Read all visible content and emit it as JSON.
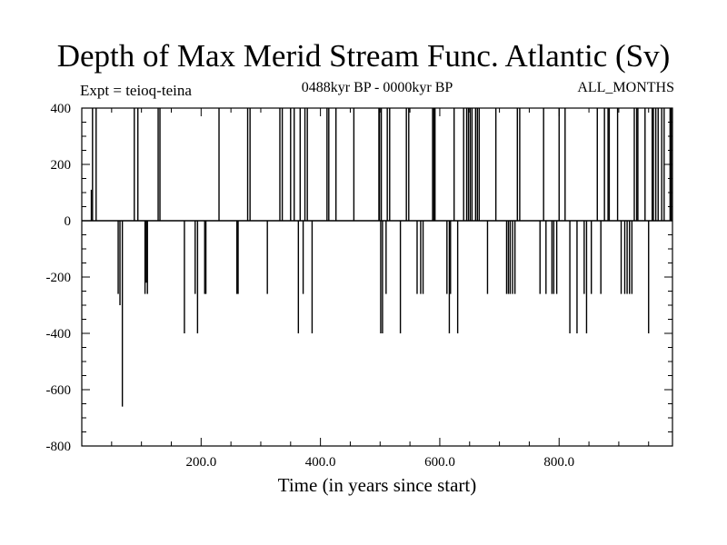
{
  "header": {
    "title": "Depth of Max Merid Stream Func. Atlantic (Sv)",
    "experiment": "Expt = teioq-teina",
    "period": "0488kyr BP - 0000kyr BP",
    "months": "ALL_MONTHS"
  },
  "chart_data": {
    "type": "line",
    "title": "Depth of Max Merid Stream Func. Atlantic (Sv)",
    "xlabel": "Time (in years since start)",
    "ylabel": "",
    "xlim": [
      0,
      990
    ],
    "ylim": [
      -800,
      400
    ],
    "x_ticks": [
      200,
      400,
      600,
      800
    ],
    "x_tick_labels": [
      "200.0",
      "400.0",
      "600.0",
      "800.0"
    ],
    "y_ticks": [
      400,
      200,
      0,
      -200,
      -400,
      -600,
      -800
    ],
    "y_tick_labels": [
      "400",
      "200",
      "0",
      "-200",
      "-400",
      "-600",
      "-800"
    ],
    "grid": false,
    "legend": "none",
    "series": [
      {
        "spikes": [
          [
            16,
            110
          ],
          [
            18,
            400
          ],
          [
            24,
            400
          ],
          [
            61,
            -260
          ],
          [
            64,
            -300
          ],
          [
            68,
            -660
          ],
          [
            88,
            400
          ],
          [
            94,
            400
          ],
          [
            106,
            -260
          ],
          [
            108,
            -220
          ],
          [
            110,
            -260
          ],
          [
            128,
            400
          ],
          [
            131,
            400
          ],
          [
            172,
            -400
          ],
          [
            190,
            -260
          ],
          [
            194,
            -400
          ],
          [
            206,
            -260
          ],
          [
            208,
            -260
          ],
          [
            230,
            400
          ],
          [
            260,
            -260
          ],
          [
            262,
            -260
          ],
          [
            278,
            400
          ],
          [
            282,
            400
          ],
          [
            311,
            -260
          ],
          [
            332,
            400
          ],
          [
            336,
            400
          ],
          [
            350,
            400
          ],
          [
            356,
            400
          ],
          [
            363,
            -400
          ],
          [
            366,
            400
          ],
          [
            371,
            -260
          ],
          [
            374,
            400
          ],
          [
            378,
            400
          ],
          [
            386,
            -400
          ],
          [
            411,
            400
          ],
          [
            414,
            400
          ],
          [
            426,
            400
          ],
          [
            456,
            400
          ],
          [
            498,
            400
          ],
          [
            499,
            400
          ],
          [
            501,
            -400
          ],
          [
            502,
            400
          ],
          [
            504,
            -400
          ],
          [
            510,
            -260
          ],
          [
            512,
            400
          ],
          [
            516,
            400
          ],
          [
            534,
            -400
          ],
          [
            544,
            400
          ],
          [
            548,
            400
          ],
          [
            562,
            -260
          ],
          [
            568,
            -260
          ],
          [
            572,
            -260
          ],
          [
            588,
            400
          ],
          [
            590,
            400
          ],
          [
            592,
            400
          ],
          [
            612,
            -260
          ],
          [
            616,
            -400
          ],
          [
            618,
            -260
          ],
          [
            624,
            400
          ],
          [
            630,
            -400
          ],
          [
            640,
            400
          ],
          [
            645,
            400
          ],
          [
            648,
            400
          ],
          [
            651,
            400
          ],
          [
            654,
            400
          ],
          [
            660,
            400
          ],
          [
            663,
            400
          ],
          [
            666,
            400
          ],
          [
            680,
            -260
          ],
          [
            694,
            400
          ],
          [
            712,
            -260
          ],
          [
            715,
            -260
          ],
          [
            718,
            -260
          ],
          [
            722,
            -260
          ],
          [
            726,
            -260
          ],
          [
            730,
            400
          ],
          [
            734,
            400
          ],
          [
            768,
            -260
          ],
          [
            774,
            400
          ],
          [
            778,
            -260
          ],
          [
            788,
            -260
          ],
          [
            791,
            -260
          ],
          [
            796,
            -260
          ],
          [
            800,
            400
          ],
          [
            810,
            400
          ],
          [
            818,
            -400
          ],
          [
            830,
            -400
          ],
          [
            842,
            -260
          ],
          [
            846,
            -400
          ],
          [
            854,
            -260
          ],
          [
            864,
            400
          ],
          [
            870,
            -260
          ],
          [
            876,
            400
          ],
          [
            882,
            400
          ],
          [
            884,
            400
          ],
          [
            898,
            400
          ],
          [
            904,
            -260
          ],
          [
            910,
            -260
          ],
          [
            914,
            -260
          ],
          [
            918,
            -260
          ],
          [
            922,
            -260
          ],
          [
            926,
            400
          ],
          [
            930,
            400
          ],
          [
            932,
            400
          ],
          [
            944,
            400
          ],
          [
            950,
            -400
          ],
          [
            956,
            400
          ],
          [
            958,
            400
          ],
          [
            962,
            400
          ],
          [
            966,
            400
          ],
          [
            972,
            400
          ],
          [
            976,
            400
          ],
          [
            986,
            400
          ],
          [
            988,
            400
          ]
        ]
      }
    ]
  }
}
